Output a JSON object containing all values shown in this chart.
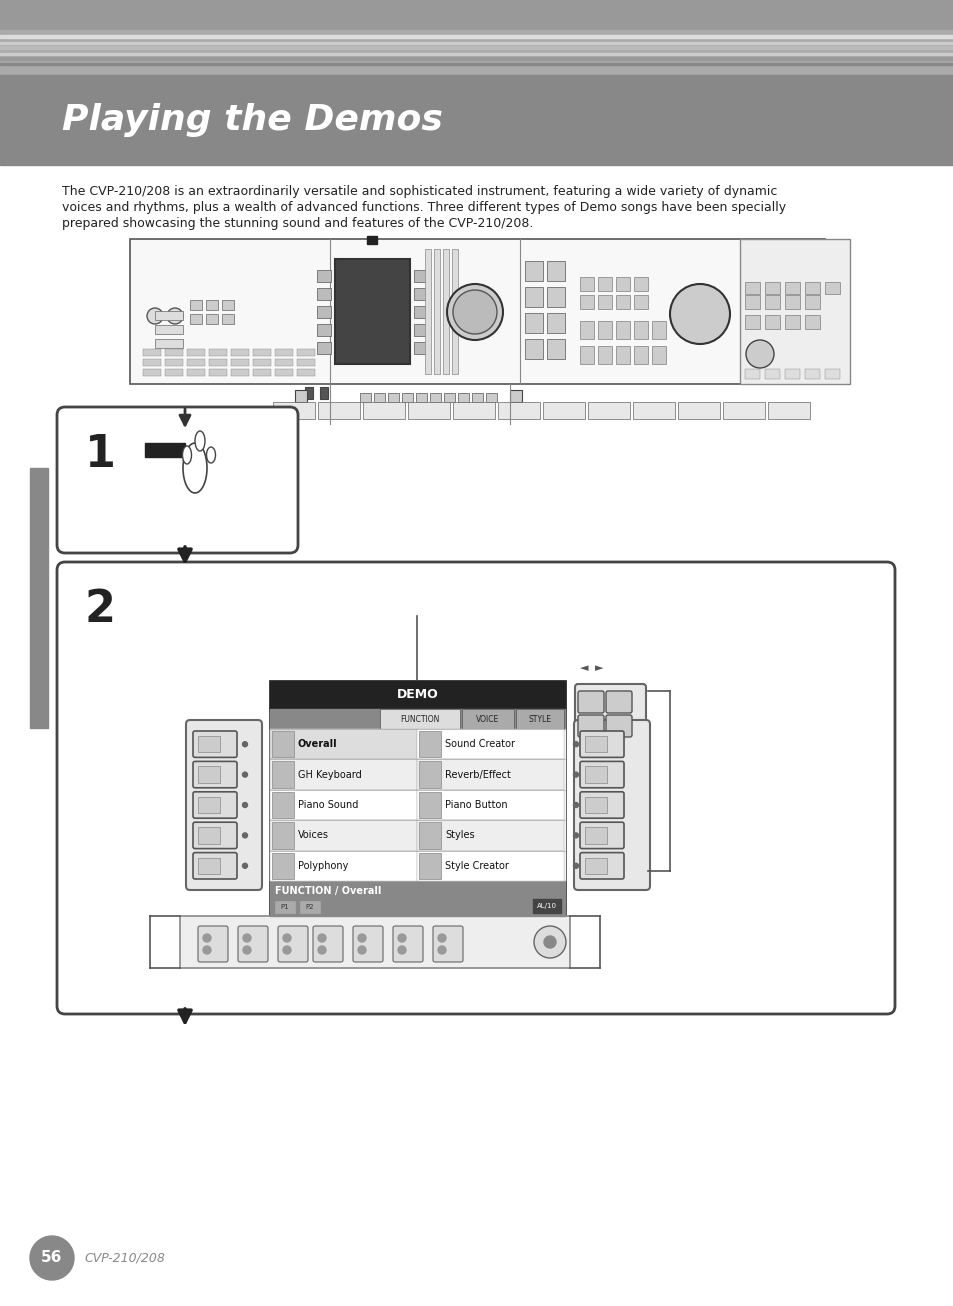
{
  "bg_color": "#ffffff",
  "header_top_gray": "#999999",
  "header_stripe1": "#bbbbbb",
  "header_stripe2": "#cccccc",
  "header_stripe3": "#aaaaaa",
  "header_title_bg": "#888888",
  "title_text": "Playing the Demos",
  "title_color": "#ffffff",
  "body_text_1": "The CVP-210/208 is an extraordinarily versatile and sophisticated instrument, featuring a wide variety of dynamic",
  "body_text_2": "voices and rhythms, plus a wealth of advanced functions. Three different types of Demo songs have been specially",
  "body_text_3": "prepared showcasing the stunning sound and features of the CVP-210/208.",
  "page_number": "56",
  "page_label": "CVP-210/208",
  "page_circle_color": "#888888",
  "left_bar_color": "#888888",
  "demo_menu_items_left": [
    "Overall",
    "GH Keyboard",
    "Piano Sound",
    "Voices",
    "Polyphony"
  ],
  "demo_menu_items_right": [
    "Sound Creator",
    "Reverb/Effect",
    "Piano Button",
    "Styles",
    "Style Creator"
  ],
  "demo_header_text": "DEMO",
  "demo_submenu": "FUNCTION / Overall",
  "demo_tabs": [
    "FUNCTION",
    "VOICE",
    "STYLE"
  ],
  "demo_footer_text": "AL/10"
}
